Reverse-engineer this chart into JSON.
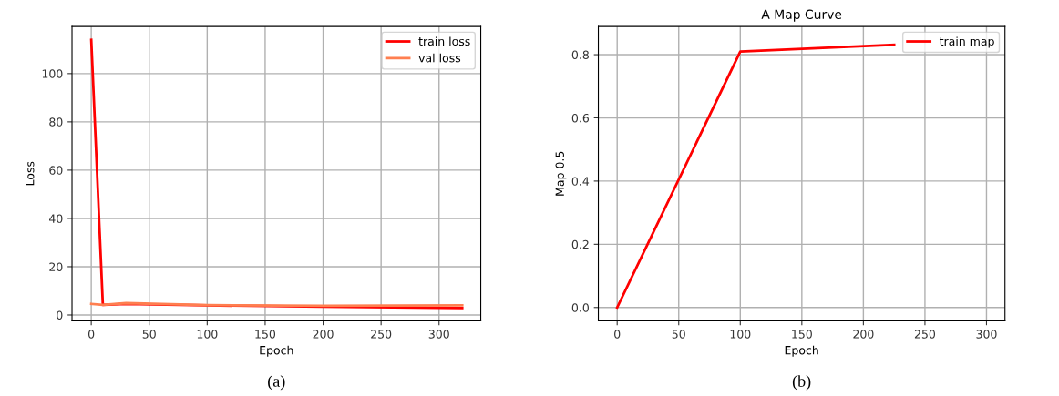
{
  "chart_data": [
    {
      "type": "line",
      "xlabel": "Epoch",
      "ylabel": "Loss",
      "annotations": [
        "(a)"
      ],
      "xlim": [
        -16.6,
        336
      ],
      "ylim": [
        -2.4,
        119.5
      ],
      "xticks": [
        0,
        50,
        100,
        150,
        200,
        250,
        300
      ],
      "yticks": [
        0,
        20,
        40,
        60,
        80,
        100
      ],
      "grid": true,
      "legend": "top right",
      "series": [
        {
          "name": "train loss",
          "color": "#ff0000",
          "x": [
            0,
            10,
            30,
            100,
            200,
            320
          ],
          "values": [
            114,
            4.2,
            4.6,
            4.0,
            3.4,
            2.9
          ]
        },
        {
          "name": "val loss",
          "color": "#ff7f50",
          "x": [
            0,
            10,
            30,
            100,
            200,
            320
          ],
          "values": [
            4.6,
            4.2,
            4.9,
            4.1,
            3.8,
            4.0
          ]
        }
      ]
    },
    {
      "type": "line",
      "title": "A Map Curve",
      "xlabel": "Epoch",
      "ylabel": "Map 0.5",
      "annotations": [
        "(b)"
      ],
      "xlim": [
        -15.3,
        315
      ],
      "ylim": [
        -0.042,
        0.889
      ],
      "xticks": [
        0,
        50,
        100,
        150,
        200,
        250,
        300
      ],
      "yticks": [
        {
          "value": 0,
          "label": "0.0"
        },
        0.2,
        0.4,
        0.6,
        0.8
      ],
      "grid": true,
      "legend": "top right",
      "series": [
        {
          "name": "train map",
          "color": "#ff0000",
          "x": [
            0,
            100,
            225
          ],
          "values": [
            0,
            0.81,
            0.831
          ]
        }
      ]
    }
  ]
}
